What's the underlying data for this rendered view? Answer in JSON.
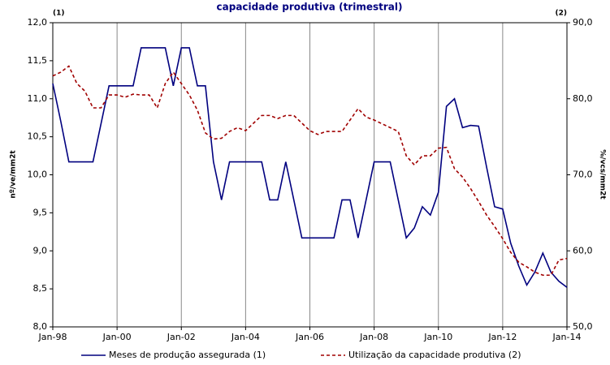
{
  "chart_data": {
    "type": "line",
    "title": "capacidade produtiva  (trimestral)",
    "y_label": "nº/ve/mm2t",
    "y2_label": "%/vcs/mm2t",
    "y_marker": "(1)",
    "y2_marker": "(2)",
    "x": [
      1998,
      1998.25,
      1998.5,
      1998.75,
      1999,
      1999.25,
      1999.5,
      1999.75,
      2000,
      2000.25,
      2000.5,
      2000.75,
      2001,
      2001.25,
      2001.5,
      2001.75,
      2002,
      2002.25,
      2002.5,
      2002.75,
      2003,
      2003.25,
      2003.5,
      2003.75,
      2004,
      2004.25,
      2004.5,
      2004.75,
      2005,
      2005.25,
      2005.5,
      2005.75,
      2006,
      2006.25,
      2006.5,
      2006.75,
      2007,
      2007.25,
      2007.5,
      2007.75,
      2008,
      2008.25,
      2008.5,
      2008.75,
      2009,
      2009.25,
      2009.5,
      2009.75,
      2010,
      2010.25,
      2010.5,
      2010.75,
      2011,
      2011.25,
      2011.5,
      2011.75,
      2012,
      2012.25,
      2012.5,
      2012.75,
      2013,
      2013.25,
      2013.5,
      2013.75,
      2014
    ],
    "series": [
      {
        "name": "Meses de produção assegurada (1)",
        "color": "#00007f",
        "dash": false,
        "values": [
          11.2,
          10.7,
          10.17,
          10.17,
          10.17,
          10.17,
          10.67,
          11.17,
          11.17,
          11.17,
          11.17,
          11.67,
          11.67,
          11.67,
          11.67,
          11.17,
          11.67,
          11.67,
          11.17,
          11.17,
          10.17,
          9.67,
          10.17,
          10.17,
          10.17,
          10.17,
          10.17,
          9.67,
          9.67,
          10.17,
          9.67,
          9.17,
          9.17,
          9.17,
          9.17,
          9.17,
          9.67,
          9.67,
          9.17,
          9.67,
          10.17,
          10.17,
          10.17,
          9.67,
          9.17,
          9.3,
          9.58,
          9.47,
          9.77,
          10.9,
          11.0,
          10.62,
          10.65,
          10.64,
          10.1,
          9.58,
          9.55,
          9.1,
          8.8,
          8.55,
          8.72,
          8.97,
          8.72,
          8.6,
          8.52
        ]
      },
      {
        "name": "Utilização da capacidade produtiva (2)",
        "color": "#a00000",
        "dash": true,
        "axis": "y2",
        "values": [
          83,
          83.5,
          84.3,
          82,
          81,
          78.8,
          78.8,
          80.5,
          80.5,
          80.2,
          80.6,
          80.5,
          80.5,
          78.8,
          82,
          83.5,
          82,
          80.5,
          78.5,
          75.5,
          74.7,
          74.8,
          75.7,
          76.2,
          75.8,
          76.8,
          77.8,
          77.8,
          77.4,
          77.8,
          77.8,
          76.8,
          75.8,
          75.3,
          75.7,
          75.7,
          75.7,
          77.2,
          78.7,
          77.6,
          77.2,
          76.7,
          76.2,
          75.7,
          72.5,
          71.3,
          72.5,
          72.5,
          73.5,
          73.6,
          70.8,
          69.7,
          68.2,
          66.5,
          64.7,
          63.2,
          61.6,
          59.8,
          58.5,
          57.9,
          57.2,
          56.8,
          56.8,
          58.8,
          59.0
        ]
      }
    ],
    "xlim": [
      1998,
      2014
    ],
    "xticks": [
      {
        "value": 1998,
        "label": "Jan-98"
      },
      {
        "value": 2000,
        "label": "Jan-00"
      },
      {
        "value": 2002,
        "label": "Jan-02"
      },
      {
        "value": 2004,
        "label": "Jan-04"
      },
      {
        "value": 2006,
        "label": "Jan-06"
      },
      {
        "value": 2008,
        "label": "Jan-08"
      },
      {
        "value": 2010,
        "label": "Jan-10"
      },
      {
        "value": 2012,
        "label": "Jan-12"
      },
      {
        "value": 2014,
        "label": "Jan-14"
      }
    ],
    "ylim": [
      8,
      12
    ],
    "yticks": [
      {
        "value": 8,
        "label": "8,0"
      },
      {
        "value": 8.5,
        "label": "8,5"
      },
      {
        "value": 9,
        "label": "9,0"
      },
      {
        "value": 9.5,
        "label": "9,5"
      },
      {
        "value": 10,
        "label": "10,0"
      },
      {
        "value": 10.5,
        "label": "10,5"
      },
      {
        "value": 11,
        "label": "11,0"
      },
      {
        "value": 11.5,
        "label": "11,5"
      },
      {
        "value": 12,
        "label": "12,0"
      }
    ],
    "y2lim": [
      50,
      90
    ],
    "y2ticks": [
      {
        "value": 50,
        "label": "50,0"
      },
      {
        "value": 60,
        "label": "60,0"
      },
      {
        "value": 70,
        "label": "70,0"
      },
      {
        "value": 80,
        "label": "80,0"
      },
      {
        "value": 90,
        "label": "90,0"
      }
    ],
    "grid": true
  }
}
